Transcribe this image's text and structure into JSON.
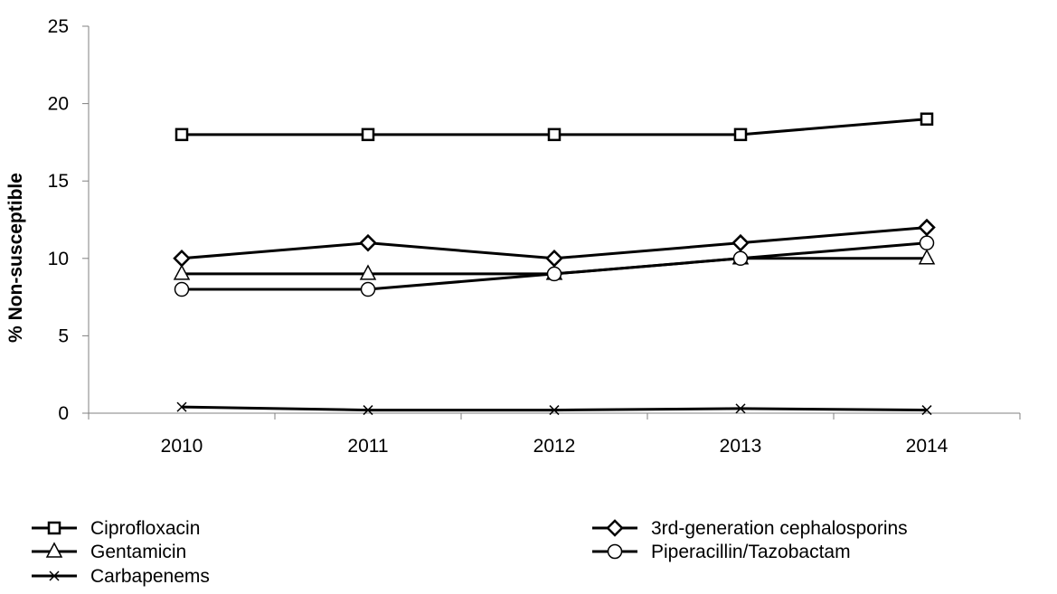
{
  "chart_data": {
    "type": "line",
    "title": "",
    "xlabel": "",
    "ylabel": "% Non-susceptible",
    "categories": [
      "2010",
      "2011",
      "2012",
      "2013",
      "2014"
    ],
    "ylim": [
      0,
      25
    ],
    "yticks": [
      0,
      5,
      10,
      15,
      20,
      25
    ],
    "grid": false,
    "legend_position": "bottom",
    "series": [
      {
        "name": "Ciprofloxacin",
        "marker": "square",
        "values": [
          18,
          18,
          18,
          18,
          19
        ]
      },
      {
        "name": "3rd-generation cephalosporins",
        "marker": "diamond",
        "values": [
          10,
          11,
          10,
          11,
          12
        ]
      },
      {
        "name": "Gentamicin",
        "marker": "triangle",
        "values": [
          9,
          9,
          9,
          10,
          10
        ]
      },
      {
        "name": "Piperacillin/Tazobactam",
        "marker": "circle",
        "values": [
          8,
          8,
          9,
          10,
          11
        ]
      },
      {
        "name": "Carbapenems",
        "marker": "x",
        "values": [
          0.4,
          0.2,
          0.2,
          0.3,
          0.2
        ]
      }
    ],
    "colors": {
      "line": "#000000",
      "marker_fill": "#ffffff",
      "axis": "#808080"
    }
  }
}
